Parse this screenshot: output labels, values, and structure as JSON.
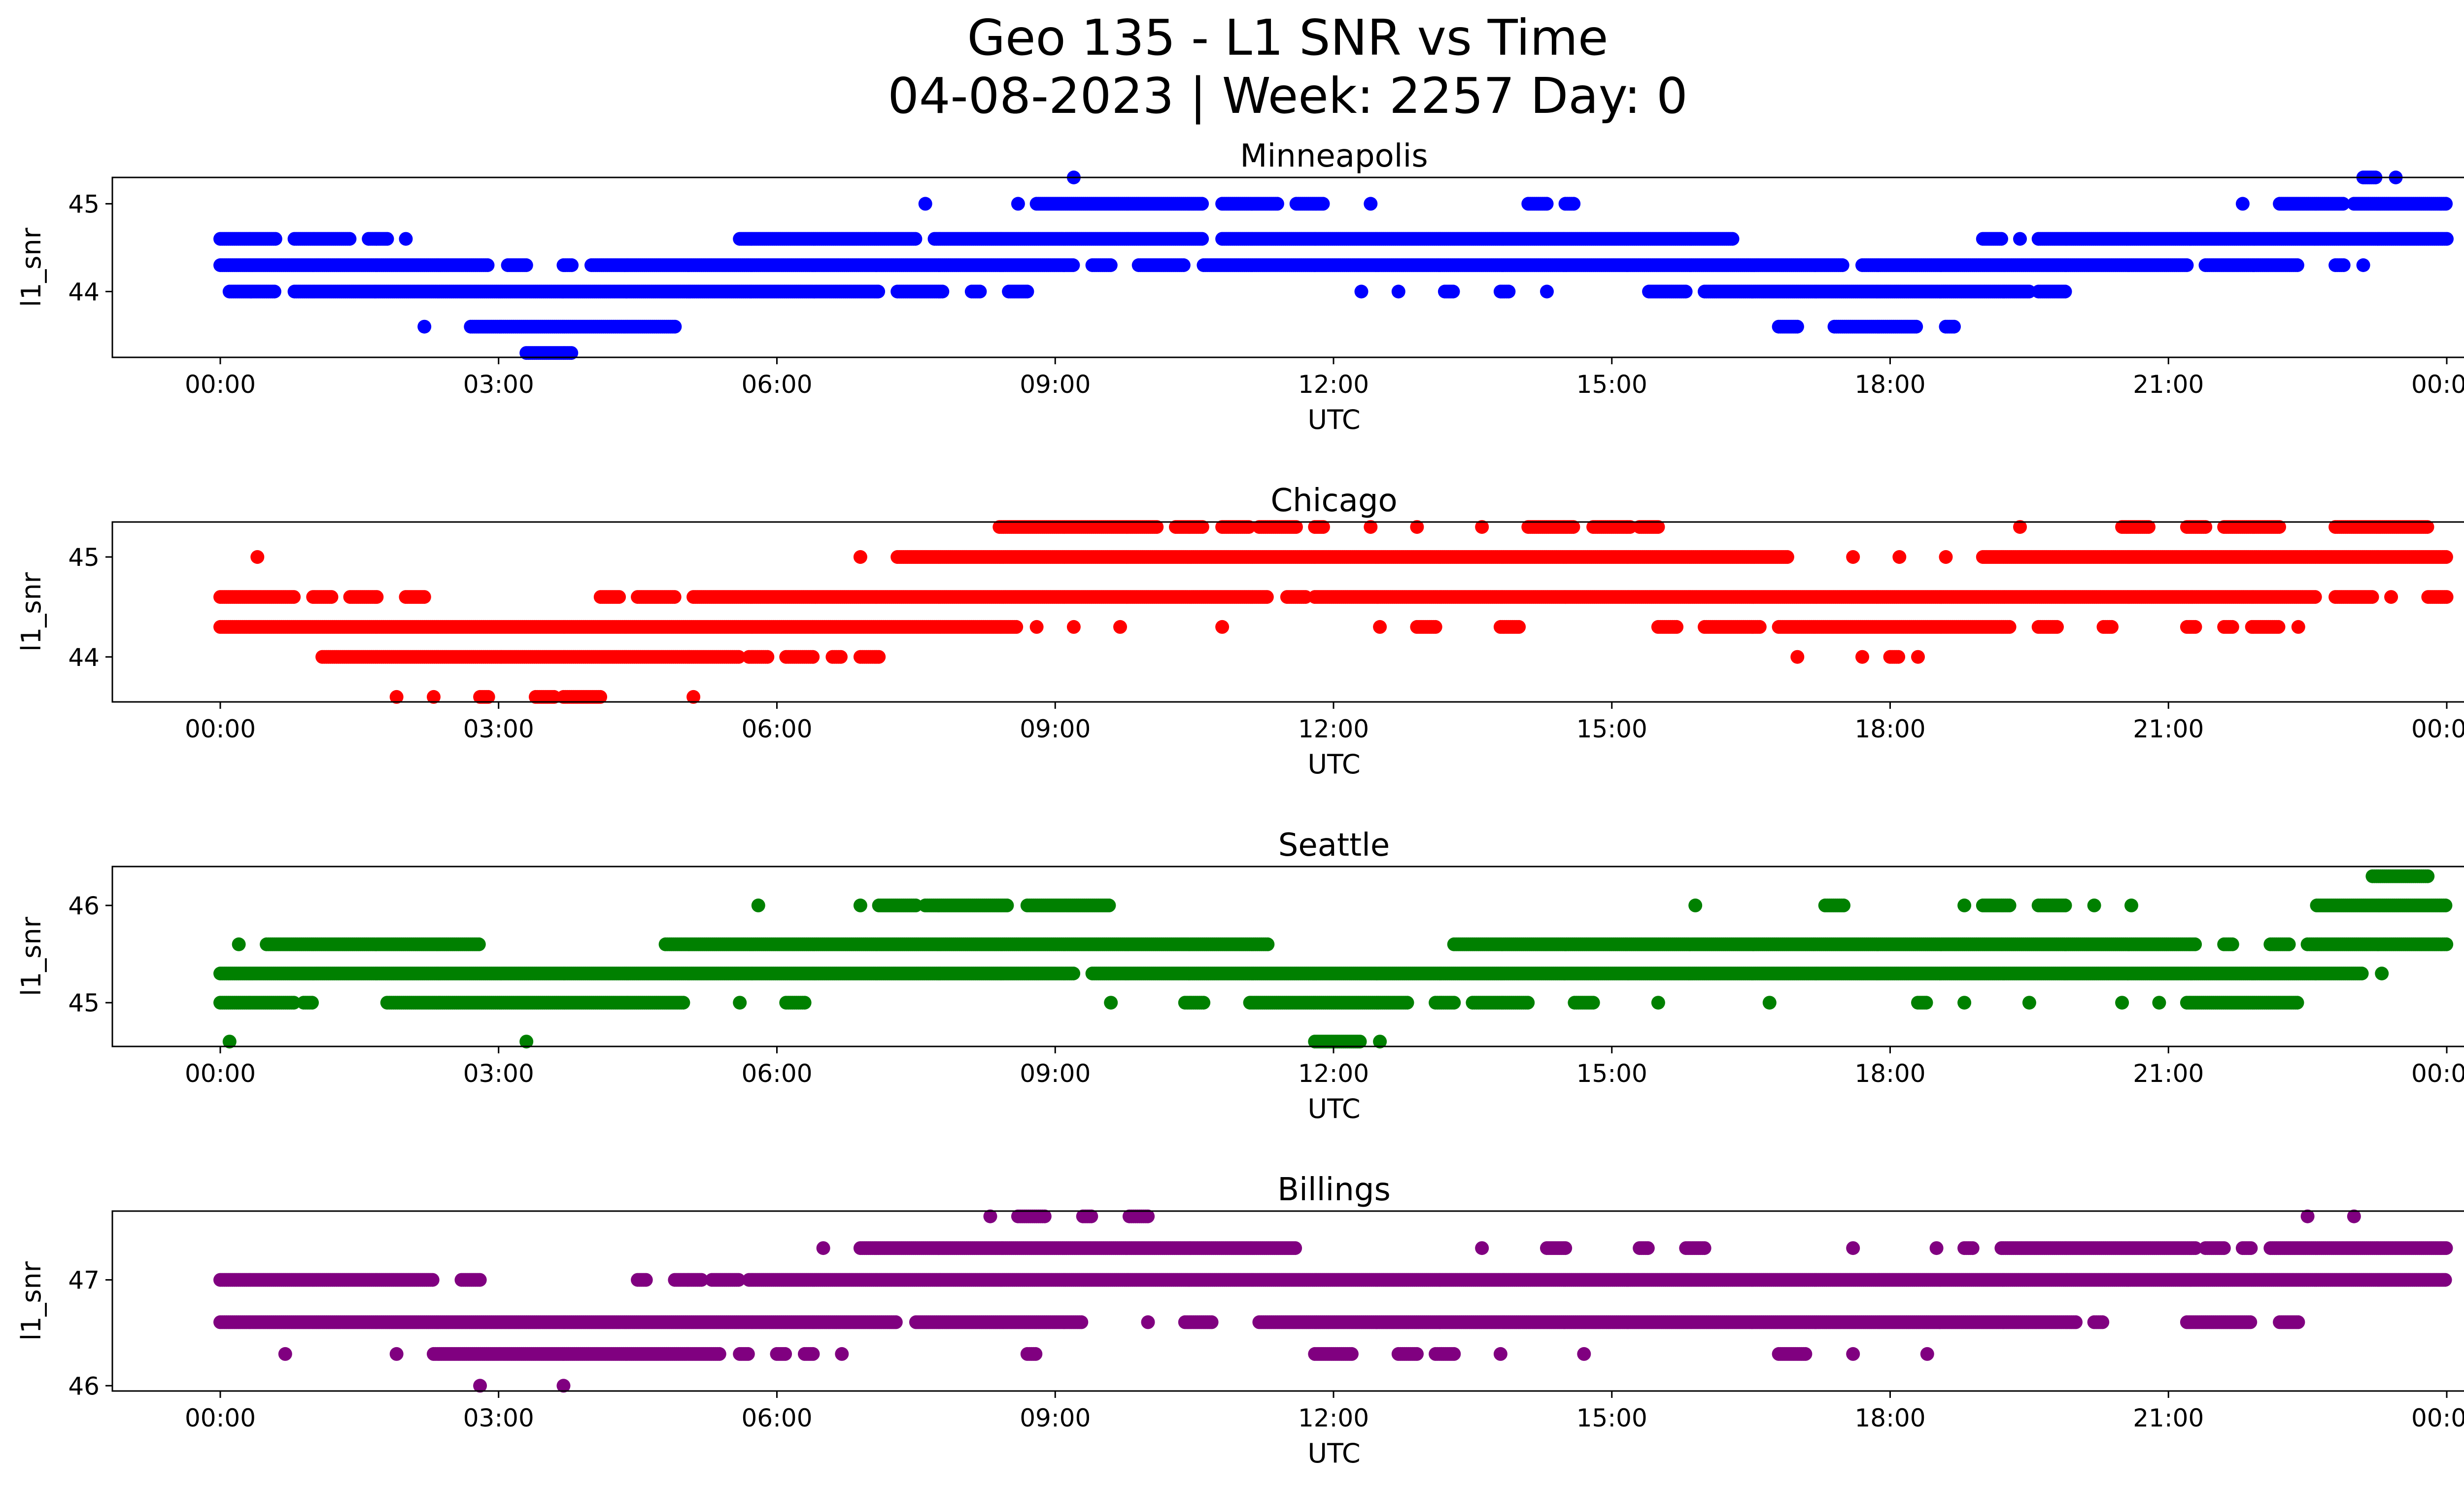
{
  "figure": {
    "title_line1": "Geo 135 - L1 SNR vs Time",
    "title_line2": "04-08-2023 | Week: 2257 Day: 0"
  },
  "chart_data": [
    {
      "type": "scatter",
      "title": "Minneapolis",
      "xlabel": "UTC",
      "ylabel": "l1_snr",
      "color": "#0000ff",
      "xlim": [
        "00:00",
        "24:00"
      ],
      "ylim": [
        43.25,
        45.3
      ],
      "x_ticks": [
        "00:00",
        "03:00",
        "06:00",
        "09:00",
        "12:00",
        "15:00",
        "18:00",
        "21:00",
        "00:00"
      ],
      "y_ticks": [
        44,
        45
      ],
      "grid": false,
      "bands": [
        {
          "y": 45.3,
          "ranges": [
            [
              9.2,
              9.2
            ],
            [
              23.1,
              23.25
            ],
            [
              23.45,
              23.45
            ]
          ]
        },
        {
          "y": 45.0,
          "ranges": [
            [
              7.6,
              7.6
            ],
            [
              8.6,
              8.6
            ],
            [
              8.8,
              10.6
            ],
            [
              10.8,
              11.4
            ],
            [
              11.6,
              11.9
            ],
            [
              12.4,
              12.4
            ],
            [
              14.1,
              14.3
            ],
            [
              14.5,
              14.6
            ],
            [
              21.8,
              21.8
            ],
            [
              22.2,
              22.9
            ],
            [
              23.0,
              24.0
            ]
          ]
        },
        {
          "y": 44.6,
          "ranges": [
            [
              0.0,
              0.6
            ],
            [
              0.8,
              1.4
            ],
            [
              1.6,
              1.8
            ],
            [
              2.0,
              2.0
            ],
            [
              5.6,
              7.5
            ],
            [
              7.7,
              10.6
            ],
            [
              10.8,
              16.3
            ],
            [
              19.0,
              19.2
            ],
            [
              19.4,
              19.4
            ],
            [
              19.6,
              24.0
            ]
          ]
        },
        {
          "y": 44.3,
          "ranges": [
            [
              0.0,
              2.9
            ],
            [
              3.1,
              3.3
            ],
            [
              3.7,
              3.8
            ],
            [
              4.0,
              9.2
            ],
            [
              9.4,
              9.6
            ],
            [
              9.9,
              10.4
            ],
            [
              10.6,
              17.5
            ],
            [
              17.7,
              21.2
            ],
            [
              21.4,
              22.4
            ],
            [
              22.8,
              22.9
            ],
            [
              23.1,
              23.1
            ]
          ]
        },
        {
          "y": 44.0,
          "ranges": [
            [
              0.1,
              0.6
            ],
            [
              0.8,
              7.1
            ],
            [
              7.3,
              7.8
            ],
            [
              8.1,
              8.2
            ],
            [
              8.5,
              8.7
            ],
            [
              12.3,
              12.3
            ],
            [
              12.7,
              12.7
            ],
            [
              13.2,
              13.3
            ],
            [
              13.8,
              13.9
            ],
            [
              14.3,
              14.3
            ],
            [
              15.4,
              15.8
            ],
            [
              16.0,
              19.5
            ],
            [
              19.6,
              19.9
            ]
          ]
        },
        {
          "y": 43.6,
          "ranges": [
            [
              2.2,
              2.2
            ],
            [
              2.7,
              4.9
            ],
            [
              16.8,
              17.0
            ],
            [
              17.4,
              18.3
            ],
            [
              18.6,
              18.7
            ]
          ]
        },
        {
          "y": 43.3,
          "ranges": [
            [
              3.3,
              3.8
            ]
          ]
        }
      ]
    },
    {
      "type": "scatter",
      "title": "Chicago",
      "xlabel": "UTC",
      "ylabel": "l1_snr",
      "color": "#ff0000",
      "xlim": [
        "00:00",
        "24:00"
      ],
      "ylim": [
        43.55,
        45.35
      ],
      "x_ticks": [
        "00:00",
        "03:00",
        "06:00",
        "09:00",
        "12:00",
        "15:00",
        "18:00",
        "21:00",
        "00:00"
      ],
      "y_ticks": [
        44,
        45
      ],
      "grid": false,
      "bands": [
        {
          "y": 45.3,
          "ranges": [
            [
              8.4,
              10.1
            ],
            [
              10.3,
              10.6
            ],
            [
              10.8,
              11.1
            ],
            [
              11.2,
              11.6
            ],
            [
              11.8,
              11.9
            ],
            [
              12.4,
              12.4
            ],
            [
              12.9,
              12.9
            ],
            [
              13.6,
              13.6
            ],
            [
              14.1,
              14.6
            ],
            [
              14.8,
              15.2
            ],
            [
              15.3,
              15.5
            ],
            [
              19.4,
              19.4
            ],
            [
              20.5,
              20.8
            ],
            [
              21.2,
              21.4
            ],
            [
              21.6,
              22.2
            ],
            [
              22.8,
              23.8
            ]
          ]
        },
        {
          "y": 45.0,
          "ranges": [
            [
              0.4,
              0.4
            ],
            [
              6.9,
              6.9
            ],
            [
              7.3,
              16.9
            ],
            [
              17.6,
              17.6
            ],
            [
              18.1,
              18.1
            ],
            [
              18.6,
              18.6
            ],
            [
              19.0,
              24.0
            ]
          ]
        },
        {
          "y": 44.6,
          "ranges": [
            [
              0.0,
              0.8
            ],
            [
              1.0,
              1.2
            ],
            [
              1.4,
              1.7
            ],
            [
              2.0,
              2.2
            ],
            [
              4.1,
              4.3
            ],
            [
              4.5,
              4.9
            ],
            [
              5.1,
              11.3
            ],
            [
              11.5,
              11.7
            ],
            [
              11.8,
              22.6
            ],
            [
              22.8,
              23.2
            ],
            [
              23.4,
              23.4
            ],
            [
              23.8,
              24.0
            ]
          ]
        },
        {
          "y": 44.3,
          "ranges": [
            [
              0.0,
              8.6
            ],
            [
              8.8,
              8.8
            ],
            [
              9.2,
              9.2
            ],
            [
              9.7,
              9.7
            ],
            [
              10.8,
              10.8
            ],
            [
              12.5,
              12.5
            ],
            [
              12.9,
              13.1
            ],
            [
              13.8,
              14.0
            ],
            [
              15.5,
              15.7
            ],
            [
              16.0,
              16.6
            ],
            [
              16.8,
              19.3
            ],
            [
              19.6,
              19.8
            ],
            [
              20.3,
              20.4
            ],
            [
              21.2,
              21.3
            ],
            [
              21.6,
              21.7
            ],
            [
              21.9,
              22.2
            ],
            [
              22.4,
              22.4
            ]
          ]
        },
        {
          "y": 44.0,
          "ranges": [
            [
              1.1,
              5.6
            ],
            [
              5.7,
              5.9
            ],
            [
              6.1,
              6.4
            ],
            [
              6.6,
              6.7
            ],
            [
              6.9,
              7.1
            ],
            [
              17.0,
              17.0
            ],
            [
              17.7,
              17.7
            ],
            [
              18.0,
              18.1
            ],
            [
              18.3,
              18.3
            ]
          ]
        },
        {
          "y": 43.6,
          "ranges": [
            [
              1.9,
              1.9
            ],
            [
              2.3,
              2.3
            ],
            [
              2.8,
              2.9
            ],
            [
              3.4,
              3.6
            ],
            [
              3.7,
              4.1
            ],
            [
              5.1,
              5.1
            ]
          ]
        }
      ]
    },
    {
      "type": "scatter",
      "title": "Seattle",
      "xlabel": "UTC",
      "ylabel": "l1_snr",
      "color": "#008000",
      "xlim": [
        "00:00",
        "24:00"
      ],
      "ylim": [
        44.55,
        46.4
      ],
      "x_ticks": [
        "00:00",
        "03:00",
        "06:00",
        "09:00",
        "12:00",
        "15:00",
        "18:00",
        "21:00",
        "00:00"
      ],
      "y_ticks": [
        45,
        46
      ],
      "grid": false,
      "bands": [
        {
          "y": 46.3,
          "ranges": [
            [
              23.2,
              23.8
            ]
          ]
        },
        {
          "y": 46.0,
          "ranges": [
            [
              5.8,
              5.8
            ],
            [
              6.9,
              6.9
            ],
            [
              7.1,
              7.5
            ],
            [
              7.6,
              8.5
            ],
            [
              8.7,
              9.6
            ],
            [
              15.9,
              15.9
            ],
            [
              17.3,
              17.5
            ],
            [
              18.8,
              18.8
            ],
            [
              19.0,
              19.3
            ],
            [
              19.6,
              19.9
            ],
            [
              20.2,
              20.2
            ],
            [
              20.6,
              20.6
            ],
            [
              22.6,
              24.0
            ]
          ]
        },
        {
          "y": 45.6,
          "ranges": [
            [
              0.2,
              0.2
            ],
            [
              0.5,
              2.8
            ],
            [
              4.8,
              11.3
            ],
            [
              13.3,
              21.3
            ],
            [
              21.6,
              21.7
            ],
            [
              22.1,
              22.3
            ],
            [
              22.5,
              24.0
            ]
          ]
        },
        {
          "y": 45.3,
          "ranges": [
            [
              0.0,
              9.2
            ],
            [
              9.4,
              23.1
            ],
            [
              23.3,
              23.3
            ]
          ]
        },
        {
          "y": 45.0,
          "ranges": [
            [
              0.0,
              0.8
            ],
            [
              0.9,
              1.0
            ],
            [
              1.8,
              5.0
            ],
            [
              5.6,
              5.6
            ],
            [
              6.1,
              6.3
            ],
            [
              9.6,
              9.6
            ],
            [
              10.4,
              10.6
            ],
            [
              11.1,
              12.8
            ],
            [
              13.1,
              13.3
            ],
            [
              13.5,
              14.1
            ],
            [
              14.6,
              14.8
            ],
            [
              15.5,
              15.5
            ],
            [
              16.7,
              16.7
            ],
            [
              18.3,
              18.4
            ],
            [
              18.8,
              18.8
            ],
            [
              19.5,
              19.5
            ],
            [
              20.5,
              20.5
            ],
            [
              20.9,
              20.9
            ],
            [
              21.2,
              22.4
            ]
          ]
        },
        {
          "y": 44.6,
          "ranges": [
            [
              0.1,
              0.1
            ],
            [
              3.3,
              3.3
            ],
            [
              11.8,
              12.3
            ],
            [
              12.5,
              12.5
            ]
          ]
        }
      ]
    },
    {
      "type": "scatter",
      "title": "Billings",
      "xlabel": "UTC",
      "ylabel": "l1_snr",
      "color": "#800080",
      "xlim": [
        "00:00",
        "24:00"
      ],
      "ylim": [
        45.95,
        47.65
      ],
      "x_ticks": [
        "00:00",
        "03:00",
        "06:00",
        "09:00",
        "12:00",
        "15:00",
        "18:00",
        "21:00",
        "00:00"
      ],
      "y_ticks": [
        46,
        47
      ],
      "grid": false,
      "bands": [
        {
          "y": 47.6,
          "ranges": [
            [
              8.3,
              8.3
            ],
            [
              8.6,
              8.9
            ],
            [
              9.3,
              9.4
            ],
            [
              9.8,
              10.0
            ],
            [
              22.5,
              22.5
            ],
            [
              23.0,
              23.0
            ]
          ]
        },
        {
          "y": 47.3,
          "ranges": [
            [
              6.5,
              6.5
            ],
            [
              6.9,
              11.6
            ],
            [
              13.6,
              13.6
            ],
            [
              14.3,
              14.5
            ],
            [
              15.3,
              15.4
            ],
            [
              15.8,
              16.0
            ],
            [
              17.6,
              17.6
            ],
            [
              18.5,
              18.5
            ],
            [
              18.8,
              18.9
            ],
            [
              19.2,
              21.3
            ],
            [
              21.4,
              21.6
            ],
            [
              21.8,
              21.9
            ],
            [
              22.1,
              24.0
            ]
          ]
        },
        {
          "y": 47.0,
          "ranges": [
            [
              0.0,
              2.3
            ],
            [
              2.6,
              2.8
            ],
            [
              4.5,
              4.6
            ],
            [
              4.9,
              5.2
            ],
            [
              5.3,
              5.6
            ],
            [
              5.7,
              24.0
            ]
          ]
        },
        {
          "y": 46.6,
          "ranges": [
            [
              0.0,
              7.3
            ],
            [
              7.5,
              9.3
            ],
            [
              10.0,
              10.0
            ],
            [
              10.4,
              10.7
            ],
            [
              11.2,
              20.0
            ],
            [
              20.2,
              20.3
            ],
            [
              21.2,
              21.9
            ],
            [
              22.2,
              22.4
            ]
          ]
        },
        {
          "y": 46.3,
          "ranges": [
            [
              0.7,
              0.7
            ],
            [
              1.9,
              1.9
            ],
            [
              2.3,
              5.4
            ],
            [
              5.6,
              5.7
            ],
            [
              6.0,
              6.1
            ],
            [
              6.3,
              6.4
            ],
            [
              6.7,
              6.7
            ],
            [
              8.7,
              8.8
            ],
            [
              11.8,
              12.2
            ],
            [
              12.7,
              12.9
            ],
            [
              13.1,
              13.3
            ],
            [
              13.8,
              13.8
            ],
            [
              14.7,
              14.7
            ],
            [
              16.8,
              17.1
            ],
            [
              17.6,
              17.6
            ],
            [
              18.4,
              18.4
            ]
          ]
        },
        {
          "y": 46.0,
          "ranges": [
            [
              2.8,
              2.8
            ],
            [
              3.7,
              3.7
            ]
          ]
        }
      ]
    }
  ]
}
